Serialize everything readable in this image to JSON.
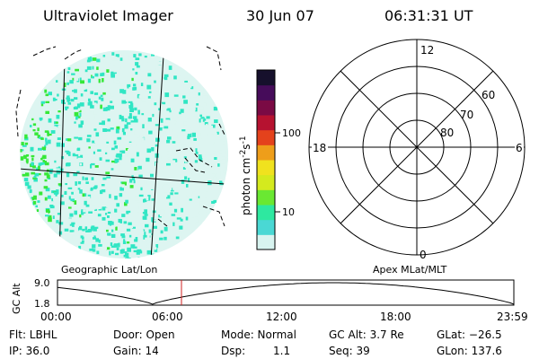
{
  "header": {
    "title": "Ultraviolet Imager",
    "date": "30 Jun 07",
    "time": "06:31:31 UT"
  },
  "colorbar": {
    "label": "photon cm",
    "label_exp1": "-2",
    "label_s": "s",
    "label_exp2": "-1",
    "tick_100": "100",
    "tick_10": "10",
    "colors": [
      "#d8f4f0",
      "#4ad8d4",
      "#2ee8a0",
      "#6ae832",
      "#d4ea1e",
      "#f0e21e",
      "#ee9e1a",
      "#e4421c",
      "#b61230",
      "#7a0a44",
      "#460c5a",
      "#16102c"
    ]
  },
  "image_panel": {
    "label": "Geographic Lat/Lon",
    "disk_colors": [
      "#30e6c4",
      "#36e838",
      "#ddf5f1"
    ]
  },
  "polar_plot": {
    "label": "Apex MLat/MLT",
    "mlt_12": "12",
    "mlt_6": "6",
    "mlt_18": "18",
    "mlt_0": "0",
    "lat_60": "60",
    "lat_70": "70",
    "lat_80": "80"
  },
  "altitude_plot": {
    "ylabel": "GC Alt",
    "y_top": "9.0",
    "y_bottom": "1.8",
    "x_ticks": [
      "00:00",
      "06:00",
      "12:00",
      "18:00",
      "23:59"
    ],
    "current_time_marker_hours": 6.52
  },
  "info": {
    "flt": "Flt: LBHL",
    "door": "Door: Open",
    "mode": "Mode: Normal",
    "gc_alt": "GC Alt: 3.7 Re",
    "glat": "GLat: −26.5",
    "ip": "IP: 36.0",
    "gain": "Gain: 14",
    "dsp_label": "Dsp:",
    "dsp_value": "1.1",
    "seq": "Seq: 39",
    "glon": "GLon: 137.6"
  }
}
